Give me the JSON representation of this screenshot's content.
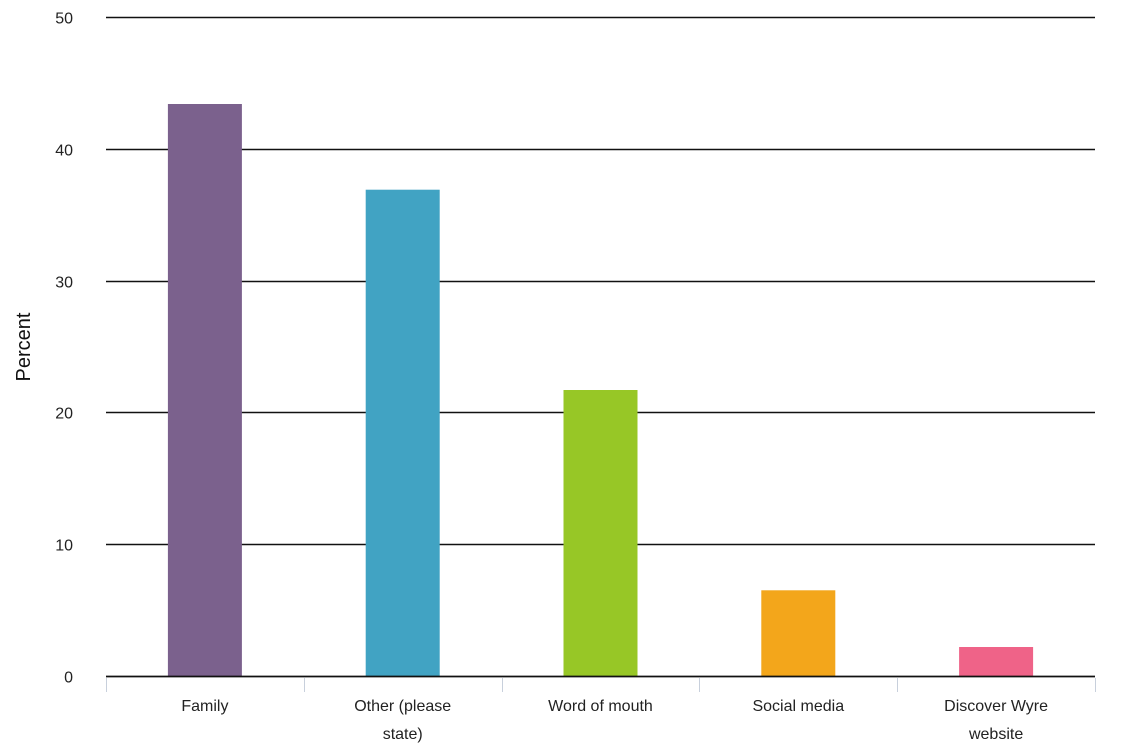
{
  "chart_data": {
    "type": "bar",
    "title": "",
    "xlabel": "",
    "ylabel": "Percent",
    "categories": [
      "Family",
      "Other (please state)",
      "Word of mouth",
      "Social media",
      "Discover Wyre website"
    ],
    "category_lines": [
      [
        "Family"
      ],
      [
        "Other (please",
        "state)"
      ],
      [
        "Word of mouth"
      ],
      [
        "Social media"
      ],
      [
        "Discover Wyre",
        "website"
      ]
    ],
    "values": [
      43.4,
      36.9,
      21.7,
      6.5,
      2.2
    ],
    "ylim": [
      0,
      50
    ],
    "yticks": [
      0,
      10,
      20,
      30,
      40,
      50
    ],
    "grid": true,
    "legend": "none",
    "colors": [
      "#7b618d",
      "#41a3c3",
      "#97c726",
      "#f3a61b",
      "#ef6388"
    ]
  }
}
